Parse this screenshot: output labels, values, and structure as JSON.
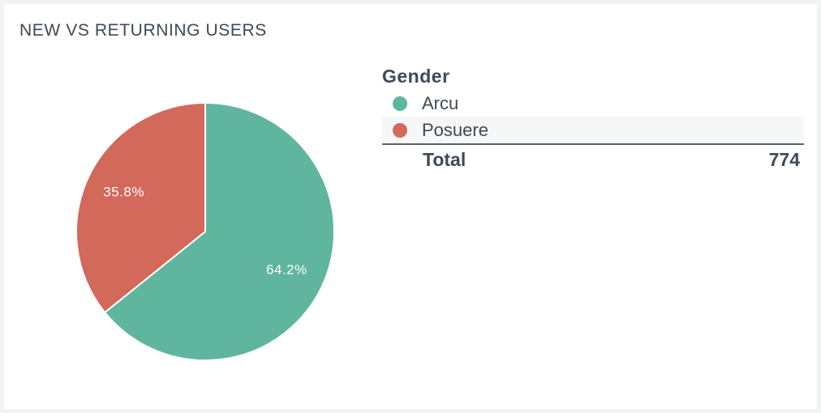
{
  "colors": {
    "card_background": "#ffffff",
    "page_background": "#f2f3f3",
    "text": "#3d4a56",
    "label_text": "#ffffff"
  },
  "chart_data": {
    "type": "pie",
    "title": "NEW VS RETURNING USERS",
    "slices": [
      {
        "label": "Arcu",
        "percent": 64.2,
        "percent_label": "64.2%",
        "color": "#5fb59d"
      },
      {
        "label": "Posuere",
        "percent": 35.8,
        "percent_label": "35.8%",
        "color": "#d2695a"
      }
    ],
    "legend": {
      "title": "Gender",
      "total_label": "Total",
      "total_value": "774"
    }
  }
}
